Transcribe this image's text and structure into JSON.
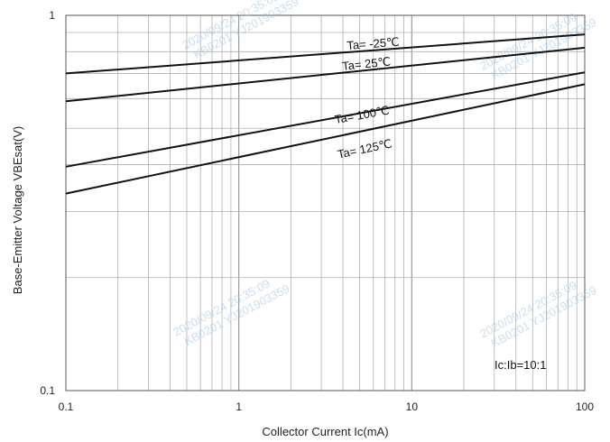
{
  "chart_data": {
    "type": "line",
    "x_scale": "log",
    "y_scale": "log",
    "xlim": [
      0.1,
      100
    ],
    "ylim": [
      0.1,
      1
    ],
    "xlabel": "Collector Current   Ic(mA)",
    "ylabel": "Base-Emitter Voltage   VBEsat(V)",
    "x_ticks": [
      "0.1",
      "1",
      "10",
      "100"
    ],
    "y_ticks": [
      "0.1",
      "1"
    ],
    "grid": true,
    "annotation": "Ic:Ib=10:1",
    "series": [
      {
        "name": "Ta= -25℃",
        "x": [
          0.1,
          100
        ],
        "y": [
          0.7,
          0.89
        ],
        "label_x": 6.0,
        "label_y": 0.82
      },
      {
        "name": "Ta= 25℃",
        "x": [
          0.1,
          100
        ],
        "y": [
          0.59,
          0.82
        ],
        "label_x": 5.5,
        "label_y": 0.725
      },
      {
        "name": "Ta= 100℃",
        "x": [
          0.1,
          100
        ],
        "y": [
          0.395,
          0.705
        ],
        "label_x": 5.2,
        "label_y": 0.53
      },
      {
        "name": "Ta= 125℃",
        "x": [
          0.1,
          100
        ],
        "y": [
          0.335,
          0.655
        ],
        "label_x": 5.4,
        "label_y": 0.43
      }
    ],
    "line_color": "#111111",
    "grid_color": "#b0b0b0"
  },
  "watermark": {
    "line1": "2020/09/24  20:35:09",
    "line2": "KB0201  YJ201903359"
  }
}
